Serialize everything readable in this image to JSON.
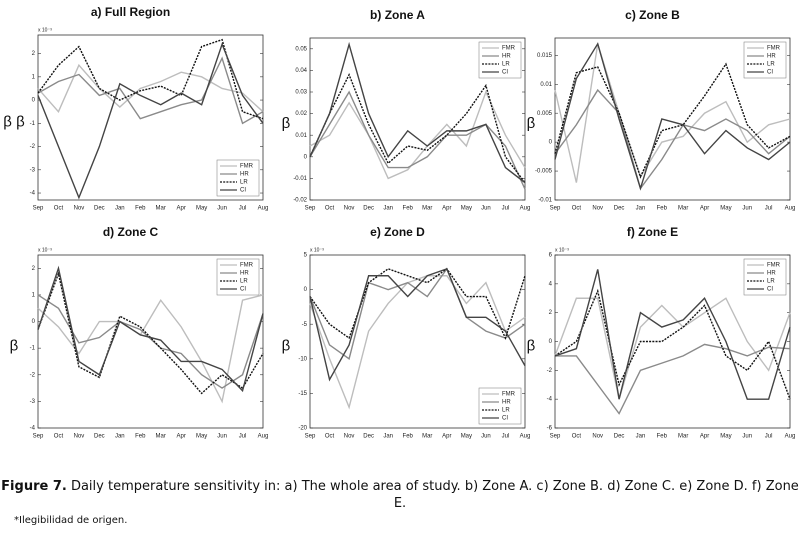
{
  "chart_data": [
    {
      "type": "line",
      "title": "a)  Full Region",
      "ylabel": "β β",
      "yunit": "x 10⁻³",
      "categories": [
        "Sep",
        "Oct",
        "Nov",
        "Dec",
        "Jan",
        "Feb",
        "Mar",
        "Apr",
        "May",
        "Jun",
        "Jul",
        "Aug"
      ],
      "ylim": [
        -4.3,
        2.8
      ],
      "yticks": [
        -4,
        -3,
        -2,
        -1,
        0,
        1,
        2
      ],
      "legend": "lower right",
      "series": [
        {
          "name": "FMR",
          "color": "#bdbdbd",
          "dashed": false,
          "values": [
            0.5,
            -0.5,
            1.5,
            0.5,
            -0.3,
            0.5,
            0.8,
            1.2,
            1.0,
            0.5,
            0.3,
            -0.5
          ]
        },
        {
          "name": "HR",
          "color": "#8a8a8a",
          "dashed": false,
          "values": [
            0.3,
            0.8,
            1.1,
            0.2,
            0.5,
            -0.8,
            -0.5,
            -0.2,
            0,
            1.8,
            -1.0,
            -0.5
          ]
        },
        {
          "name": "LR",
          "color": "#111111",
          "dashed": true,
          "values": [
            0.3,
            1.5,
            2.3,
            0.5,
            0,
            0.4,
            0.6,
            0.2,
            2.3,
            2.6,
            -0.5,
            -0.8
          ]
        },
        {
          "name": "CI",
          "color": "#444444",
          "dashed": false,
          "values": [
            0.2,
            -2,
            -4.2,
            -2,
            0.7,
            0.2,
            -0.2,
            0.3,
            -0.2,
            2.4,
            0.2,
            -1.0
          ]
        }
      ]
    },
    {
      "type": "line",
      "title": "b)   Zone A",
      "ylabel": "β",
      "categories": [
        "Sep",
        "Oct",
        "Nov",
        "Dec",
        "Jan",
        "Feb",
        "Mar",
        "Apr",
        "May",
        "Jun",
        "Jul",
        "Aug"
      ],
      "ylim": [
        -0.02,
        0.055
      ],
      "yticks": [
        -0.02,
        -0.01,
        0,
        0.01,
        0.02,
        0.03,
        0.04,
        0.05
      ],
      "legend": "upper right",
      "series": [
        {
          "name": "FMR",
          "color": "#bdbdbd",
          "dashed": false,
          "values": [
            0.005,
            0.01,
            0.025,
            0.01,
            -0.01,
            -0.006,
            0.005,
            0.015,
            0.005,
            0.03,
            0.01,
            -0.005
          ]
        },
        {
          "name": "HR",
          "color": "#8a8a8a",
          "dashed": false,
          "values": [
            0,
            0.015,
            0.03,
            0.01,
            -0.005,
            -0.005,
            0,
            0.01,
            0.01,
            0.015,
            0.005,
            -0.015
          ]
        },
        {
          "name": "LR",
          "color": "#111111",
          "dashed": true,
          "values": [
            0,
            0.02,
            0.038,
            0.015,
            -0.003,
            0.005,
            0.003,
            0.01,
            0.02,
            0.033,
            0,
            -0.012
          ]
        },
        {
          "name": "CI",
          "color": "#444444",
          "dashed": false,
          "values": [
            0,
            0.02,
            0.052,
            0.02,
            0,
            0.012,
            0.005,
            0.012,
            0.012,
            0.015,
            -0.005,
            -0.012
          ]
        }
      ]
    },
    {
      "type": "line",
      "title": "c)   Zone  B",
      "ylabel": "β",
      "categories": [
        "Sep",
        "Oct",
        "Nov",
        "Dec",
        "Jan",
        "Feb",
        "Mar",
        "Apr",
        "May",
        "Jun",
        "Jul",
        "Aug"
      ],
      "ylim": [
        -0.01,
        0.018
      ],
      "yticks": [
        -0.01,
        -0.005,
        0,
        0.005,
        0.01,
        0.015
      ],
      "legend": "upper right",
      "series": [
        {
          "name": "FMR",
          "color": "#bdbdbd",
          "dashed": false,
          "values": [
            0.009,
            -0.007,
            0.017,
            0.005,
            -0.006,
            0,
            0.001,
            0.005,
            0.007,
            0,
            0.003,
            0.004
          ]
        },
        {
          "name": "HR",
          "color": "#8a8a8a",
          "dashed": false,
          "values": [
            -0.002,
            0.003,
            0.009,
            0.005,
            -0.008,
            -0.003,
            0.003,
            0.002,
            0.004,
            0.002,
            -0.002,
            0.001
          ]
        },
        {
          "name": "LR",
          "color": "#111111",
          "dashed": true,
          "values": [
            -0.002,
            0.012,
            0.013,
            0.005,
            -0.006,
            0.002,
            0.003,
            0.008,
            0.0135,
            0.003,
            -0.001,
            0.001
          ]
        },
        {
          "name": "CI",
          "color": "#444444",
          "dashed": false,
          "values": [
            -0.003,
            0.011,
            0.017,
            0.004,
            -0.008,
            0.004,
            0.003,
            -0.002,
            0.002,
            -0.001,
            -0.003,
            0
          ]
        }
      ]
    },
    {
      "type": "line",
      "title": "d)   Zone  C",
      "ylabel": "β",
      "yunit": "x 10⁻³",
      "categories": [
        "Sep",
        "Oct",
        "Nov",
        "Dec",
        "Jan",
        "Feb",
        "Mar",
        "Apr",
        "May",
        "Jun",
        "Jul",
        "Aug"
      ],
      "ylim": [
        -4,
        2.5
      ],
      "yticks": [
        -4,
        -3,
        -2,
        -1,
        0,
        1,
        2
      ],
      "legend": "upper right",
      "series": [
        {
          "name": "FMR",
          "color": "#bdbdbd",
          "dashed": false,
          "values": [
            0.5,
            -0.2,
            -1.2,
            0,
            0,
            -0.5,
            0.8,
            -0.2,
            -1.5,
            -3,
            0.8,
            1
          ]
        },
        {
          "name": "HR",
          "color": "#8a8a8a",
          "dashed": false,
          "values": [
            1,
            0.5,
            -0.8,
            -0.6,
            0,
            -0.3,
            -1,
            -1.2,
            -2,
            -2.5,
            -2,
            0.3
          ]
        },
        {
          "name": "LR",
          "color": "#111111",
          "dashed": true,
          "values": [
            -0.3,
            1.8,
            -1.7,
            -2.1,
            0.2,
            -0.2,
            -1,
            -1.8,
            -2.7,
            -2,
            -2.5,
            -1.2
          ]
        },
        {
          "name": "CI",
          "color": "#444444",
          "dashed": false,
          "values": [
            -0.3,
            2,
            -1.5,
            -2,
            0,
            -0.5,
            -0.7,
            -1.5,
            -1.5,
            -1.8,
            -2.6,
            0.3
          ]
        }
      ]
    },
    {
      "type": "line",
      "title": "e)   Zone D",
      "ylabel": "β",
      "yunit": "x 10⁻³",
      "categories": [
        "Sep",
        "Oct",
        "Nov",
        "Dec",
        "Jan",
        "Feb",
        "Mar",
        "Apr",
        "May",
        "Jun",
        "Jul",
        "Aug"
      ],
      "ylim": [
        -20,
        5
      ],
      "yticks": [
        -20,
        -15,
        -10,
        -5,
        0,
        5
      ],
      "legend": "lower right",
      "series": [
        {
          "name": "FMR",
          "color": "#bdbdbd",
          "dashed": false,
          "values": [
            -2,
            -10,
            -17,
            -6,
            -2,
            1,
            2,
            2,
            -2,
            1,
            -6,
            -4
          ]
        },
        {
          "name": "HR",
          "color": "#8a8a8a",
          "dashed": false,
          "values": [
            -1,
            -8,
            -10,
            1,
            0,
            1,
            -1,
            3,
            -4,
            -6,
            -7,
            -5
          ]
        },
        {
          "name": "LR",
          "color": "#111111",
          "dashed": true,
          "values": [
            -1,
            -5,
            -7,
            1,
            3,
            2,
            1,
            3,
            -1,
            -1,
            -7,
            2
          ]
        },
        {
          "name": "CI",
          "color": "#444444",
          "dashed": false,
          "values": [
            -1,
            -13,
            -8,
            2,
            2,
            -1,
            2,
            3,
            -4,
            -4,
            -6,
            -11
          ]
        }
      ]
    },
    {
      "type": "line",
      "title": "f)   Zone E",
      "ylabel": "β",
      "yunit": "x 10⁻³",
      "categories": [
        "Sep",
        "Oct",
        "Nov",
        "Dec",
        "Jan",
        "Feb",
        "Mar",
        "Apr",
        "May",
        "Jun",
        "Jul",
        "Aug"
      ],
      "ylim": [
        -6,
        6
      ],
      "yticks": [
        -6,
        -4,
        -2,
        0,
        2,
        4,
        6
      ],
      "legend": "upper right",
      "series": [
        {
          "name": "FMR",
          "color": "#bdbdbd",
          "dashed": false,
          "values": [
            -1,
            3,
            3,
            -4,
            1,
            2.5,
            1,
            2,
            3,
            0,
            -2,
            2
          ]
        },
        {
          "name": "HR",
          "color": "#8a8a8a",
          "dashed": false,
          "values": [
            -1,
            -1,
            -3,
            -5,
            -2,
            -1.5,
            -1,
            -0.2,
            -0.5,
            -1,
            -0.4,
            -0.5
          ]
        },
        {
          "name": "LR",
          "color": "#111111",
          "dashed": true,
          "values": [
            -1,
            0,
            3.5,
            -3,
            0,
            0,
            1,
            2.5,
            -1,
            -2,
            0,
            -4
          ]
        },
        {
          "name": "CI",
          "color": "#444444",
          "dashed": false,
          "values": [
            -1,
            -0.5,
            5,
            -4,
            2,
            1,
            1.5,
            3,
            0,
            -4,
            -4,
            1
          ]
        }
      ]
    }
  ],
  "caption": {
    "label": "Figure 7.",
    "text": "Daily temperature sensitivity in: a) The whole area of study. b) Zone A. c) Zone B. d) Zone C. e) Zone D. f) Zone E."
  },
  "note": "*Ilegibilidad de origen."
}
